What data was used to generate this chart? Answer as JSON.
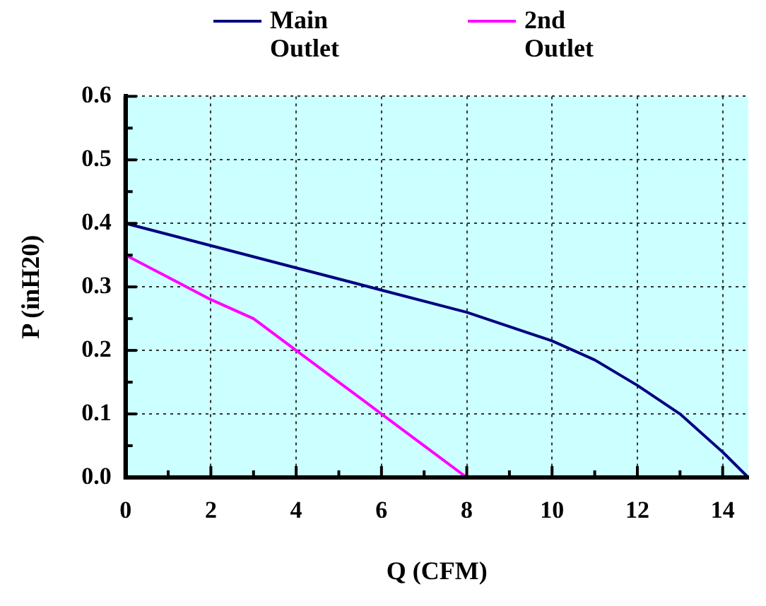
{
  "chart_data": {
    "type": "line",
    "xlabel": "Q (CFM)",
    "ylabel": "P (inH20)",
    "xlim": [
      0,
      14.6
    ],
    "xticks": [
      0,
      {
        "value": 1,
        "label": null
      },
      2,
      {
        "value": 3,
        "label": null
      },
      4,
      {
        "value": 5,
        "label": null
      },
      6,
      {
        "value": 7,
        "label": null
      },
      8,
      {
        "value": 9,
        "label": null
      },
      10,
      {
        "value": 11,
        "label": null
      },
      12,
      {
        "value": 13,
        "label": null
      },
      14
    ],
    "ylim": [
      0,
      0.6
    ],
    "yticks": [
      {
        "value": 0,
        "label": "0.0"
      },
      {
        "value": 0.05,
        "label": null
      },
      {
        "value": 0.1,
        "label": "0.1"
      },
      {
        "value": 0.15,
        "label": null
      },
      {
        "value": 0.2,
        "label": "0.2"
      },
      {
        "value": 0.25,
        "label": null
      },
      {
        "value": 0.3,
        "label": "0.3"
      },
      {
        "value": 0.35,
        "label": null
      },
      {
        "value": 0.4,
        "label": "0.4"
      },
      {
        "value": 0.45,
        "label": null
      },
      {
        "value": 0.5,
        "label": "0.5"
      },
      {
        "value": 0.55,
        "label": null
      },
      {
        "value": 0.6,
        "label": "0.6"
      }
    ],
    "grid": true,
    "legend": "top",
    "marker": "none",
    "line_style": "solid",
    "series": [
      {
        "name": "Main Outlet",
        "color": "#000080",
        "x": [
          0,
          2,
          4,
          6,
          8,
          10,
          11,
          12,
          13,
          14,
          14.6
        ],
        "values": [
          0.4,
          0.365,
          0.33,
          0.295,
          0.26,
          0.215,
          0.185,
          0.145,
          0.1,
          0.04,
          0
        ]
      },
      {
        "name": "2nd Outlet",
        "color": "#ff00ff",
        "x": [
          0,
          2,
          3,
          4,
          5,
          6,
          7,
          8
        ],
        "values": [
          0.35,
          0.28,
          0.25,
          0.2,
          0.15,
          0.1,
          0.05,
          0
        ]
      }
    ]
  }
}
